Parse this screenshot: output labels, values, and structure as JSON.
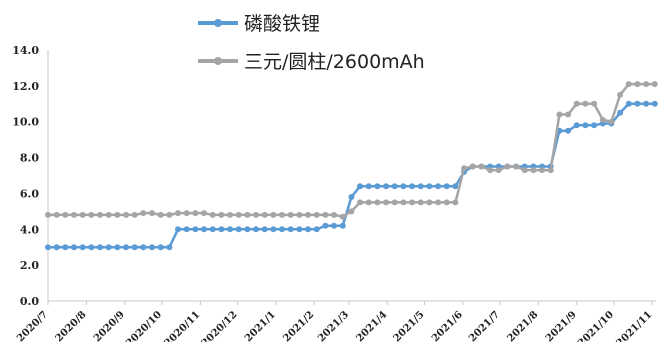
{
  "chart_data": {
    "type": "line",
    "ylim": [
      0,
      14
    ],
    "y_ticks": [
      "0.0",
      "2.0",
      "4.0",
      "6.0",
      "8.0",
      "10.0",
      "12.0",
      "14.0"
    ],
    "x_tick_labels": [
      "2020/7",
      "2020/8",
      "2020/9",
      "2020/10",
      "2020/11",
      "2020/12",
      "2021/1",
      "2021/2",
      "2021/3",
      "2021/4",
      "2021/5",
      "2021/6",
      "2021/7",
      "2021/8",
      "2021/9",
      "2021/10",
      "2021/11"
    ],
    "legend_position": "top",
    "series": [
      {
        "name": "磷酸铁锂",
        "color": "#5b9bd5",
        "x": [
          "2020/7/1",
          "2020/7/8",
          "2020/7/15",
          "2020/7/22",
          "2020/7/29",
          "2020/8/5",
          "2020/8/12",
          "2020/8/19",
          "2020/8/26",
          "2020/9/2",
          "2020/9/9",
          "2020/9/16",
          "2020/9/23",
          "2020/9/30",
          "2020/10/7",
          "2020/10/14",
          "2020/10/21",
          "2020/10/28",
          "2020/11/4",
          "2020/11/11",
          "2020/11/18",
          "2020/11/25",
          "2020/12/2",
          "2020/12/9",
          "2020/12/16",
          "2020/12/23",
          "2020/12/30",
          "2021/1/6",
          "2021/1/13",
          "2021/1/20",
          "2021/1/27",
          "2021/2/3",
          "2021/2/10",
          "2021/2/17",
          "2021/2/24",
          "2021/3/3",
          "2021/3/10",
          "2021/3/17",
          "2021/3/24",
          "2021/3/31",
          "2021/4/7",
          "2021/4/14",
          "2021/4/21",
          "2021/4/28",
          "2021/5/5",
          "2021/5/12",
          "2021/5/19",
          "2021/5/26",
          "2021/6/2",
          "2021/6/9",
          "2021/6/16",
          "2021/6/23",
          "2021/6/30",
          "2021/7/7",
          "2021/7/14",
          "2021/7/21",
          "2021/7/28",
          "2021/8/4",
          "2021/8/11",
          "2021/8/18",
          "2021/8/25",
          "2021/9/1",
          "2021/9/8",
          "2021/9/15",
          "2021/9/22",
          "2021/9/29",
          "2021/10/6",
          "2021/10/13",
          "2021/10/20",
          "2021/10/27",
          "2021/11/3"
        ],
        "values": [
          3.0,
          3.0,
          3.0,
          3.0,
          3.0,
          3.0,
          3.0,
          3.0,
          3.0,
          3.0,
          3.0,
          3.0,
          3.0,
          3.0,
          3.0,
          4.0,
          4.0,
          4.0,
          4.0,
          4.0,
          4.0,
          4.0,
          4.0,
          4.0,
          4.0,
          4.0,
          4.0,
          4.0,
          4.0,
          4.0,
          4.0,
          4.0,
          4.2,
          4.2,
          4.2,
          5.8,
          6.4,
          6.4,
          6.4,
          6.4,
          6.4,
          6.4,
          6.4,
          6.4,
          6.4,
          6.4,
          6.4,
          6.4,
          7.2,
          7.5,
          7.5,
          7.5,
          7.5,
          7.5,
          7.5,
          7.5,
          7.5,
          7.5,
          7.5,
          9.5,
          9.5,
          9.8,
          9.8,
          9.8,
          9.9,
          9.9,
          10.5,
          11.0,
          11.0,
          11.0,
          11.0
        ]
      },
      {
        "name": "三元/圆柱/2600mAh",
        "color": "#a5a5a5",
        "x": [
          "2020/7/1",
          "2020/7/8",
          "2020/7/15",
          "2020/7/22",
          "2020/7/29",
          "2020/8/5",
          "2020/8/12",
          "2020/8/19",
          "2020/8/26",
          "2020/9/2",
          "2020/9/9",
          "2020/9/16",
          "2020/9/23",
          "2020/9/30",
          "2020/10/7",
          "2020/10/14",
          "2020/10/21",
          "2020/10/28",
          "2020/11/4",
          "2020/11/11",
          "2020/11/18",
          "2020/11/25",
          "2020/12/2",
          "2020/12/9",
          "2020/12/16",
          "2020/12/23",
          "2020/12/30",
          "2021/1/6",
          "2021/1/13",
          "2021/1/20",
          "2021/1/27",
          "2021/2/3",
          "2021/2/10",
          "2021/2/17",
          "2021/2/24",
          "2021/3/3",
          "2021/3/10",
          "2021/3/17",
          "2021/3/24",
          "2021/3/31",
          "2021/4/7",
          "2021/4/14",
          "2021/4/21",
          "2021/4/28",
          "2021/5/5",
          "2021/5/12",
          "2021/5/19",
          "2021/5/26",
          "2021/6/2",
          "2021/6/9",
          "2021/6/16",
          "2021/6/23",
          "2021/6/30",
          "2021/7/7",
          "2021/7/14",
          "2021/7/21",
          "2021/7/28",
          "2021/8/4",
          "2021/8/11",
          "2021/8/18",
          "2021/8/25",
          "2021/9/1",
          "2021/9/8",
          "2021/9/15",
          "2021/9/22",
          "2021/9/29",
          "2021/10/6",
          "2021/10/13",
          "2021/10/20",
          "2021/10/27",
          "2021/11/3"
        ],
        "values": [
          4.8,
          4.8,
          4.8,
          4.8,
          4.8,
          4.8,
          4.8,
          4.8,
          4.8,
          4.8,
          4.8,
          4.9,
          4.9,
          4.8,
          4.8,
          4.9,
          4.9,
          4.9,
          4.9,
          4.8,
          4.8,
          4.8,
          4.8,
          4.8,
          4.8,
          4.8,
          4.8,
          4.8,
          4.8,
          4.8,
          4.8,
          4.8,
          4.8,
          4.8,
          4.7,
          5.0,
          5.5,
          5.5,
          5.5,
          5.5,
          5.5,
          5.5,
          5.5,
          5.5,
          5.5,
          5.5,
          5.5,
          5.5,
          7.4,
          7.5,
          7.5,
          7.3,
          7.3,
          7.5,
          7.5,
          7.3,
          7.3,
          7.3,
          7.3,
          10.4,
          10.4,
          11.0,
          11.0,
          11.0,
          10.1,
          10.0,
          11.5,
          12.1,
          12.1,
          12.1,
          12.1
        ]
      }
    ]
  }
}
